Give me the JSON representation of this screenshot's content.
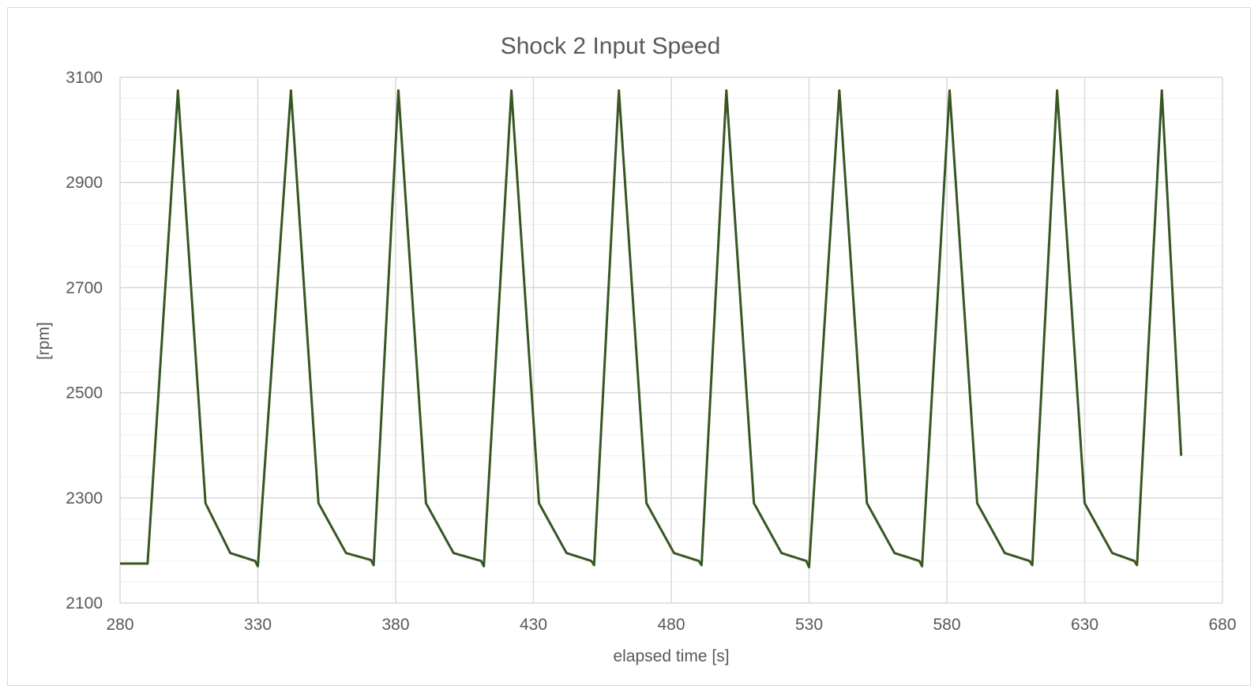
{
  "chart_data": {
    "type": "line",
    "title": "Shock 2 Input Speed",
    "xlabel": "elapsed time [s]",
    "ylabel": "[rpm]",
    "xlim": [
      280,
      680
    ],
    "ylim": [
      2100,
      3100
    ],
    "xticks": [
      280,
      330,
      380,
      430,
      480,
      530,
      580,
      630,
      680
    ],
    "yticks": [
      2100,
      2300,
      2500,
      2700,
      2900,
      3100
    ],
    "x_major_step": 50,
    "y_major_step": 200,
    "y_minor_step": 40,
    "grid": true,
    "legend": "none",
    "colors": {
      "series": "#375623",
      "grid": "#d9d9d9",
      "text": "#595959"
    },
    "series": [
      {
        "values_note": "",
        "x": [
          280,
          290,
          301,
          311,
          320,
          329,
          330,
          342,
          352,
          362,
          371,
          372,
          381,
          391,
          401,
          411,
          412,
          422,
          432,
          442,
          451,
          452,
          461,
          471,
          481,
          490,
          491,
          500,
          510,
          520,
          529,
          530,
          541,
          551,
          561,
          570,
          571,
          581,
          591,
          601,
          610,
          611,
          620,
          630,
          640,
          648,
          649,
          658,
          665
        ],
        "y": [
          2175,
          2175,
          3075,
          2290,
          2195,
          2180,
          2170,
          3075,
          2290,
          2195,
          2182,
          2172,
          3075,
          2290,
          2195,
          2180,
          2170,
          3075,
          2290,
          2195,
          2180,
          2172,
          3075,
          2290,
          2195,
          2180,
          2172,
          3075,
          2290,
          2195,
          2180,
          2168,
          3075,
          2290,
          2195,
          2180,
          2170,
          3075,
          2290,
          2195,
          2180,
          2172,
          3075,
          2290,
          2195,
          2180,
          2172,
          3075,
          2380
        ]
      }
    ]
  }
}
